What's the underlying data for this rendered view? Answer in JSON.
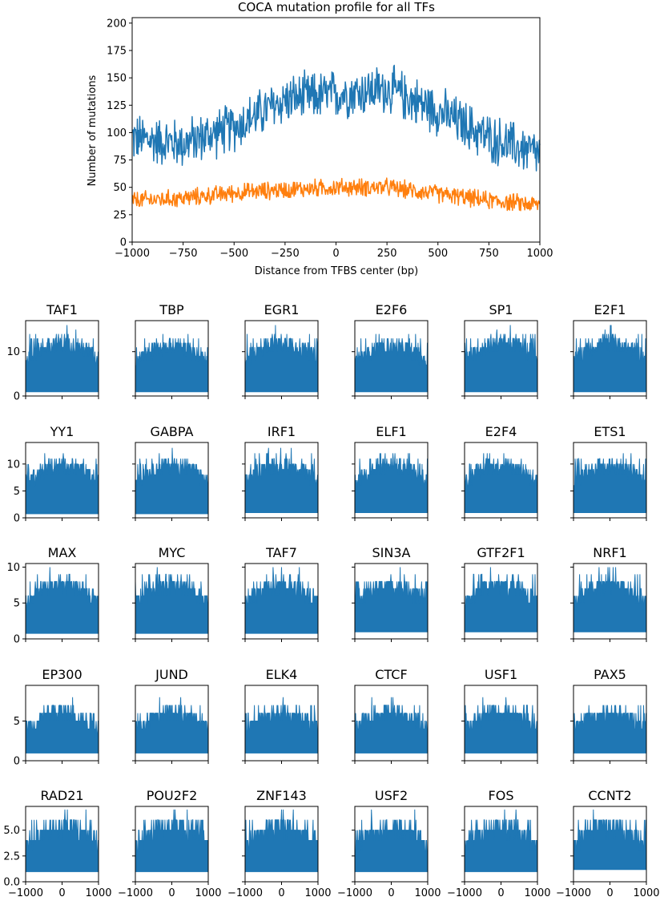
{
  "chart_data": [
    {
      "type": "line",
      "title": "COCA mutation profile for all TFs",
      "xlabel": "Distance from TFBS center (bp)",
      "ylabel": "Number of mutations",
      "xlim": [
        -1000,
        1000
      ],
      "ylim": [
        0,
        205
      ],
      "xticks": [
        -1000,
        -750,
        -500,
        -250,
        0,
        250,
        500,
        750,
        1000
      ],
      "xtick_labels": [
        "−1000",
        "−750",
        "−500",
        "−250",
        "0",
        "250",
        "500",
        "750",
        "1000"
      ],
      "yticks": [
        0,
        25,
        50,
        75,
        100,
        125,
        150,
        175,
        200
      ],
      "ytick_labels": [
        "0",
        "25",
        "50",
        "75",
        "100",
        "125",
        "150",
        "175",
        "200"
      ],
      "grid": false,
      "series": [
        {
          "color": "#1f77b4",
          "x": [
            -1000,
            -750,
            -500,
            -250,
            0,
            250,
            500,
            750,
            1000
          ],
          "y": [
            95,
            90,
            105,
            130,
            135,
            140,
            120,
            95,
            80
          ],
          "noise": 22
        },
        {
          "color": "#ff7f0e",
          "x": [
            -1000,
            -750,
            -500,
            -250,
            0,
            250,
            500,
            750,
            1000
          ],
          "y": [
            38,
            40,
            45,
            48,
            50,
            50,
            44,
            38,
            34
          ],
          "noise": 8
        }
      ]
    },
    {
      "type": "line",
      "small_multiples": true,
      "xlim": [
        -1000,
        1000
      ],
      "xticks": [
        -1000,
        0,
        1000
      ],
      "xtick_labels": [
        "−1000",
        "0",
        "1000"
      ],
      "grid": false,
      "series_color": "#1f77b4",
      "rows": [
        {
          "ylim": [
            0,
            17
          ],
          "yticks": [
            0,
            10
          ],
          "ytick_labels": [
            "0",
            "10"
          ],
          "panels": [
            {
              "title": "TAF1",
              "peak": 16,
              "base": 1
            },
            {
              "title": "TBP",
              "peak": 15,
              "base": 1
            },
            {
              "title": "EGR1",
              "peak": 16,
              "base": 1
            },
            {
              "title": "E2F6",
              "peak": 15,
              "base": 1
            },
            {
              "title": "SP1",
              "peak": 16,
              "base": 1
            },
            {
              "title": "E2F1",
              "peak": 16,
              "base": 1
            }
          ]
        },
        {
          "ylim": [
            0,
            14
          ],
          "yticks": [
            0,
            5,
            10
          ],
          "ytick_labels": [
            "0",
            "5",
            "10"
          ],
          "panels": [
            {
              "title": "YY1",
              "peak": 13,
              "base": 0.8
            },
            {
              "title": "GABPA",
              "peak": 13,
              "base": 0.8
            },
            {
              "title": "IRF1",
              "peak": 13,
              "base": 1
            },
            {
              "title": "ELF1",
              "peak": 13,
              "base": 1
            },
            {
              "title": "E2F4",
              "peak": 13,
              "base": 1
            },
            {
              "title": "ETS1",
              "peak": 13,
              "base": 1
            }
          ]
        },
        {
          "ylim": [
            0,
            10.5
          ],
          "yticks": [
            0,
            5,
            10
          ],
          "ytick_labels": [
            "0",
            "5",
            "10"
          ],
          "panels": [
            {
              "title": "MAX",
              "peak": 10,
              "base": 0.8
            },
            {
              "title": "MYC",
              "peak": 10,
              "base": 0.8
            },
            {
              "title": "TAF7",
              "peak": 10,
              "base": 0.8
            },
            {
              "title": "SIN3A",
              "peak": 10,
              "base": 1
            },
            {
              "title": "GTF2F1",
              "peak": 10,
              "base": 1
            },
            {
              "title": "NRF1",
              "peak": 10,
              "base": 1
            }
          ]
        },
        {
          "ylim": [
            0,
            9.5
          ],
          "yticks": [
            0,
            5
          ],
          "ytick_labels": [
            "0",
            "5"
          ],
          "panels": [
            {
              "title": "EP300",
              "peak": 8,
              "base": 1
            },
            {
              "title": "JUND",
              "peak": 8,
              "base": 1
            },
            {
              "title": "ELK4",
              "peak": 8,
              "base": 1
            },
            {
              "title": "CTCF",
              "peak": 8,
              "base": 1
            },
            {
              "title": "USF1",
              "peak": 8,
              "base": 1
            },
            {
              "title": "PAX5",
              "peak": 8,
              "base": 1
            }
          ]
        },
        {
          "ylim": [
            0,
            7.3
          ],
          "yticks": [
            0,
            2.5,
            5
          ],
          "ytick_labels": [
            "0.0",
            "2.5",
            "5.0"
          ],
          "panels": [
            {
              "title": "RAD21",
              "peak": 7,
              "base": 1
            },
            {
              "title": "POU2F2",
              "peak": 7,
              "base": 1
            },
            {
              "title": "ZNF143",
              "peak": 7,
              "base": 1
            },
            {
              "title": "USF2",
              "peak": 7,
              "base": 1
            },
            {
              "title": "FOS",
              "peak": 7,
              "base": 1
            },
            {
              "title": "CCNT2",
              "peak": 7,
              "base": 1.2
            }
          ]
        }
      ]
    }
  ]
}
